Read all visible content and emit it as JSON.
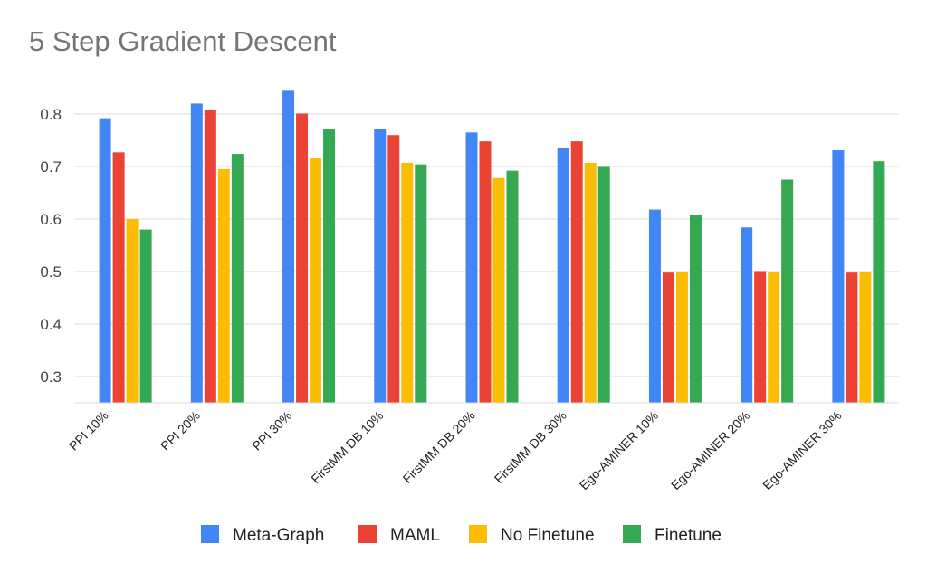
{
  "chart_data": {
    "type": "bar",
    "title": "5 Step Gradient Descent",
    "xlabel": "",
    "ylabel": "",
    "ylim": [
      0.25,
      0.8
    ],
    "yticks": [
      "0.3",
      "0.4",
      "0.5",
      "0.6",
      "0.7",
      "0.8"
    ],
    "gridlines": true,
    "legend_position": "bottom",
    "categories": [
      "PPI 10%",
      "PPI 20%",
      "PPI 30%",
      "FirstMM DB 10%",
      "FirstMM DB 20%",
      "FirstMM DB 30%",
      "Ego-AMINER 10%",
      "Ego-AMINER 20%",
      "Ego-AMINER 30%"
    ],
    "series": [
      {
        "name": "Meta-Graph",
        "color": "#4285F4",
        "values": [
          0.792,
          0.82,
          0.846,
          0.771,
          0.765,
          0.736,
          0.618,
          0.584,
          0.731
        ]
      },
      {
        "name": "MAML",
        "color": "#EA4335",
        "values": [
          0.727,
          0.807,
          0.801,
          0.76,
          0.748,
          0.748,
          0.498,
          0.501,
          0.498
        ]
      },
      {
        "name": "No Finetune",
        "color": "#FBBC04",
        "values": [
          0.6,
          0.695,
          0.716,
          0.707,
          0.678,
          0.707,
          0.5,
          0.5,
          0.5
        ]
      },
      {
        "name": "Finetune",
        "color": "#34A853",
        "values": [
          0.58,
          0.724,
          0.772,
          0.704,
          0.692,
          0.701,
          0.607,
          0.675,
          0.71
        ]
      }
    ]
  }
}
